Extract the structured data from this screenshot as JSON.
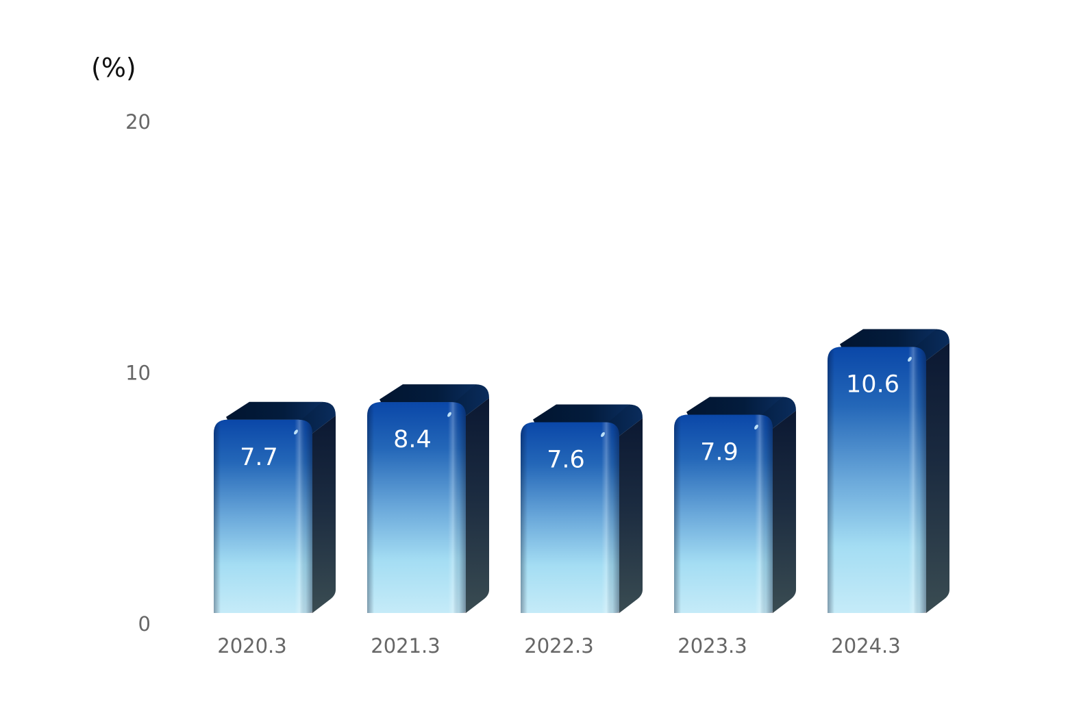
{
  "chart_data": {
    "type": "bar",
    "style": "3d",
    "unit_label": "(%)",
    "categories": [
      "2020.3",
      "2021.3",
      "2022.3",
      "2023.3",
      "2024.3"
    ],
    "values": [
      7.7,
      8.4,
      7.6,
      7.9,
      10.6
    ],
    "data_labels": [
      "7.7",
      "8.4",
      "7.6",
      "7.9",
      "10.6"
    ],
    "yticks": [
      "0",
      "10",
      "20"
    ],
    "ylim": [
      0,
      20
    ],
    "grid": false,
    "legend": "none",
    "colors": {
      "front_top": "#0a47a8",
      "front_mid": "#4a8fcc",
      "front_bottom": "#bfe9f8",
      "side_top": "#0c1a33",
      "side_bottom": "#3a4c52",
      "top_face": "#02152e"
    }
  }
}
